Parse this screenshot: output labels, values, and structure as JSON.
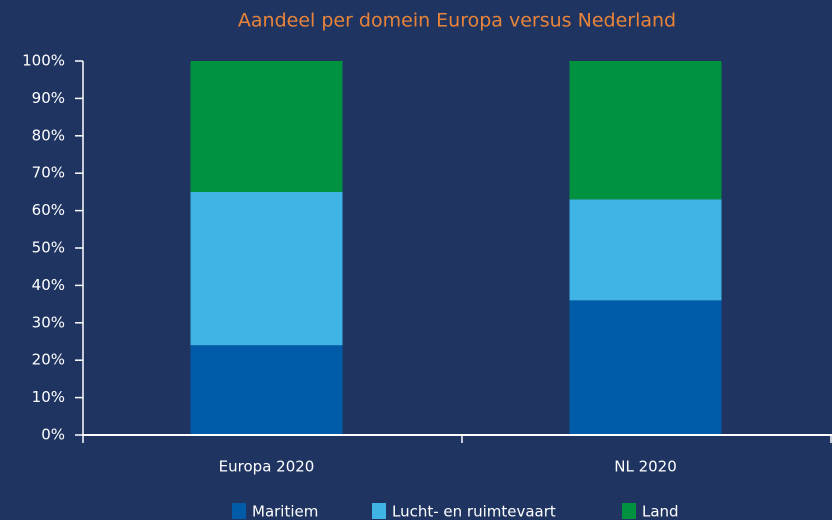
{
  "chart_data": {
    "type": "stacked_bar",
    "title": "Aandeel per domein Europa versus Nederland",
    "categories": [
      "Europa 2020",
      "NL 2020"
    ],
    "series": [
      {
        "name": "Maritiem",
        "color": "#005ba9",
        "values": [
          24,
          36
        ]
      },
      {
        "name": "Lucht- en ruimtevaart",
        "color": "#41b4e6",
        "values": [
          41,
          27
        ]
      },
      {
        "name": "Land",
        "color": "#00923f",
        "values": [
          35,
          37
        ]
      }
    ],
    "ylim": [
      0,
      100
    ],
    "yticks": [
      {
        "value": 0,
        "label": "0%"
      },
      {
        "value": 10,
        "label": "10%"
      },
      {
        "value": 20,
        "label": "20%"
      },
      {
        "value": 30,
        "label": "30%"
      },
      {
        "value": 40,
        "label": "40%"
      },
      {
        "value": 50,
        "label": "50%"
      },
      {
        "value": 60,
        "label": "60%"
      },
      {
        "value": 70,
        "label": "70%"
      },
      {
        "value": 80,
        "label": "80%"
      },
      {
        "value": 90,
        "label": "90%"
      },
      {
        "value": 100,
        "label": "100%"
      }
    ],
    "legend": "bottom"
  }
}
